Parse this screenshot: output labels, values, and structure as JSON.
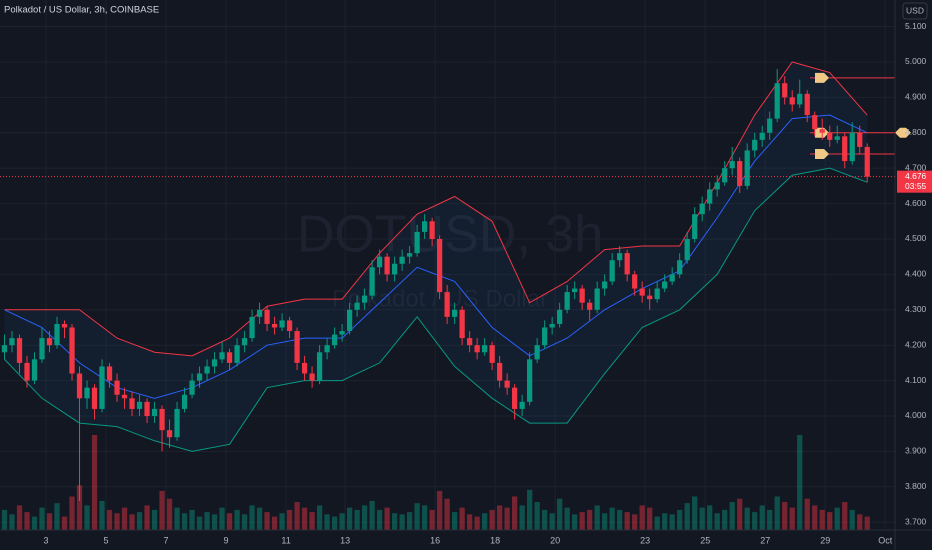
{
  "chart_data": {
    "type": "candlestick",
    "title": "Polkadot / US Dollar, 3h, COINBASE",
    "watermark": "DOTUSD, 3h",
    "watermark_subtitle": "Polkadot / US Dollar",
    "currency": "USD",
    "countdown": "03:55",
    "up_color": "#089981",
    "down_color": "#f23645",
    "ylim": [
      3.678,
      5.175
    ],
    "yticks": [
      {
        "value": 3.7,
        "label": "3.700"
      },
      {
        "value": 3.8,
        "label": "3.800"
      },
      {
        "value": 3.9,
        "label": "3.900"
      },
      {
        "value": 4.0,
        "label": "4.000"
      },
      {
        "value": 4.1,
        "label": "4.100"
      },
      {
        "value": 4.2,
        "label": "4.200"
      },
      {
        "value": 4.3,
        "label": "4.300"
      },
      {
        "value": 4.4,
        "label": "4.400"
      },
      {
        "value": 4.5,
        "label": "4.500"
      },
      {
        "value": 4.6,
        "label": "4.600"
      },
      {
        "value": 4.7,
        "label": "4.700"
      },
      {
        "value": 4.8,
        "label": "4.800"
      },
      {
        "value": 4.9,
        "label": "4.900"
      },
      {
        "value": 5.0,
        "label": "5.000"
      },
      {
        "value": 5.1,
        "label": "5.100"
      }
    ],
    "xlim": [
      -0.6,
      118.7
    ],
    "xticks": [
      {
        "value": 5.53,
        "label": "3"
      },
      {
        "value": 13.53,
        "label": "5"
      },
      {
        "value": 21.53,
        "label": "7"
      },
      {
        "value": 29.53,
        "label": "9"
      },
      {
        "value": 37.53,
        "label": "11"
      },
      {
        "value": 45.4,
        "label": "13"
      },
      {
        "value": 57.4,
        "label": "16"
      },
      {
        "value": 65.4,
        "label": "18"
      },
      {
        "value": 73.4,
        "label": "20"
      },
      {
        "value": 85.4,
        "label": "23"
      },
      {
        "value": 93.4,
        "label": "25"
      },
      {
        "value": 101.4,
        "label": "27"
      },
      {
        "value": 109.4,
        "label": "29"
      },
      {
        "value": 117.4,
        "label": "Oct"
      }
    ],
    "grid": true,
    "candles": [
      [
        4.18,
        4.23,
        4.16,
        4.2
      ],
      [
        4.2,
        4.24,
        4.18,
        4.22
      ],
      [
        4.22,
        4.23,
        4.12,
        4.15
      ],
      [
        4.15,
        4.17,
        4.08,
        4.1
      ],
      [
        4.1,
        4.18,
        4.09,
        4.16
      ],
      [
        4.16,
        4.25,
        4.15,
        4.22
      ],
      [
        4.22,
        4.24,
        4.18,
        4.2
      ],
      [
        4.2,
        4.28,
        4.19,
        4.26
      ],
      [
        4.26,
        4.27,
        4.22,
        4.25
      ],
      [
        4.25,
        4.26,
        4.1,
        4.12
      ],
      [
        4.12,
        4.14,
        3.76,
        4.05
      ],
      [
        4.05,
        4.1,
        4.02,
        4.08
      ],
      [
        4.08,
        4.09,
        3.99,
        4.02
      ],
      [
        4.02,
        4.16,
        4.01,
        4.14
      ],
      [
        4.14,
        4.15,
        4.08,
        4.1
      ],
      [
        4.1,
        4.12,
        4.04,
        4.06
      ],
      [
        4.06,
        4.08,
        4.02,
        4.05
      ],
      [
        4.05,
        4.07,
        4.0,
        4.02
      ],
      [
        4.02,
        4.06,
        4.0,
        4.04
      ],
      [
        4.04,
        4.05,
        3.98,
        4.0
      ],
      [
        4.0,
        4.04,
        3.98,
        4.02
      ],
      [
        4.02,
        4.03,
        3.9,
        3.96
      ],
      [
        3.96,
        3.99,
        3.91,
        3.94
      ],
      [
        3.94,
        4.04,
        3.93,
        4.02
      ],
      [
        4.02,
        4.08,
        4.01,
        4.06
      ],
      [
        4.06,
        4.12,
        4.05,
        4.1
      ],
      [
        4.1,
        4.14,
        4.08,
        4.12
      ],
      [
        4.12,
        4.16,
        4.1,
        4.14
      ],
      [
        4.14,
        4.18,
        4.12,
        4.16
      ],
      [
        4.16,
        4.21,
        4.15,
        4.18
      ],
      [
        4.18,
        4.19,
        4.13,
        4.15
      ],
      [
        4.15,
        4.22,
        4.14,
        4.2
      ],
      [
        4.2,
        4.24,
        4.18,
        4.22
      ],
      [
        4.22,
        4.3,
        4.21,
        4.28
      ],
      [
        4.28,
        4.32,
        4.26,
        4.3
      ],
      [
        4.3,
        4.31,
        4.24,
        4.26
      ],
      [
        4.26,
        4.28,
        4.23,
        4.25
      ],
      [
        4.25,
        4.29,
        4.24,
        4.27
      ],
      [
        4.27,
        4.28,
        4.22,
        4.24
      ],
      [
        4.24,
        4.25,
        4.13,
        4.15
      ],
      [
        4.15,
        4.17,
        4.1,
        4.12
      ],
      [
        4.12,
        4.14,
        4.08,
        4.1
      ],
      [
        4.1,
        4.2,
        4.09,
        4.18
      ],
      [
        4.18,
        4.22,
        4.16,
        4.2
      ],
      [
        4.2,
        4.25,
        4.19,
        4.23
      ],
      [
        4.23,
        4.26,
        4.21,
        4.24
      ],
      [
        4.24,
        4.32,
        4.23,
        4.3
      ],
      [
        4.3,
        4.34,
        4.28,
        4.32
      ],
      [
        4.32,
        4.36,
        4.3,
        4.34
      ],
      [
        4.34,
        4.44,
        4.33,
        4.42
      ],
      [
        4.42,
        4.47,
        4.4,
        4.45
      ],
      [
        4.45,
        4.46,
        4.38,
        4.4
      ],
      [
        4.4,
        4.45,
        4.38,
        4.43
      ],
      [
        4.43,
        4.47,
        4.41,
        4.45
      ],
      [
        4.45,
        4.48,
        4.43,
        4.46
      ],
      [
        4.46,
        4.54,
        4.45,
        4.52
      ],
      [
        4.52,
        4.57,
        4.5,
        4.55
      ],
      [
        4.55,
        4.56,
        4.48,
        4.5
      ],
      [
        4.5,
        4.51,
        4.33,
        4.35
      ],
      [
        4.35,
        4.37,
        4.26,
        4.28
      ],
      [
        4.28,
        4.32,
        4.26,
        4.3
      ],
      [
        4.3,
        4.31,
        4.2,
        4.22
      ],
      [
        4.22,
        4.24,
        4.18,
        4.2
      ],
      [
        4.2,
        4.22,
        4.16,
        4.18
      ],
      [
        4.18,
        4.22,
        4.17,
        4.2
      ],
      [
        4.2,
        4.21,
        4.13,
        4.15
      ],
      [
        4.15,
        4.17,
        4.08,
        4.1
      ],
      [
        4.1,
        4.12,
        4.06,
        4.08
      ],
      [
        4.08,
        4.09,
        3.99,
        4.02
      ],
      [
        4.02,
        4.06,
        4.0,
        4.04
      ],
      [
        4.04,
        4.18,
        4.03,
        4.16
      ],
      [
        4.16,
        4.22,
        4.15,
        4.2
      ],
      [
        4.2,
        4.27,
        4.19,
        4.25
      ],
      [
        4.25,
        4.28,
        4.23,
        4.26
      ],
      [
        4.26,
        4.32,
        4.25,
        4.3
      ],
      [
        4.3,
        4.37,
        4.29,
        4.35
      ],
      [
        4.35,
        4.38,
        4.33,
        4.36
      ],
      [
        4.36,
        4.37,
        4.3,
        4.32
      ],
      [
        4.32,
        4.33,
        4.27,
        4.3
      ],
      [
        4.3,
        4.38,
        4.29,
        4.36
      ],
      [
        4.36,
        4.4,
        4.34,
        4.38
      ],
      [
        4.38,
        4.46,
        4.37,
        4.44
      ],
      [
        4.44,
        4.48,
        4.42,
        4.46
      ],
      [
        4.46,
        4.47,
        4.38,
        4.4
      ],
      [
        4.4,
        4.41,
        4.34,
        4.36
      ],
      [
        4.36,
        4.38,
        4.32,
        4.34
      ],
      [
        4.34,
        4.36,
        4.3,
        4.33
      ],
      [
        4.33,
        4.38,
        4.32,
        4.36
      ],
      [
        4.36,
        4.4,
        4.35,
        4.38
      ],
      [
        4.38,
        4.42,
        4.37,
        4.4
      ],
      [
        4.4,
        4.46,
        4.39,
        4.44
      ],
      [
        4.44,
        4.52,
        4.43,
        4.5
      ],
      [
        4.5,
        4.59,
        4.49,
        4.57
      ],
      [
        4.57,
        4.62,
        4.55,
        4.6
      ],
      [
        4.6,
        4.66,
        4.58,
        4.64
      ],
      [
        4.64,
        4.68,
        4.62,
        4.66
      ],
      [
        4.66,
        4.72,
        4.65,
        4.7
      ],
      [
        4.7,
        4.76,
        4.68,
        4.72
      ],
      [
        4.72,
        4.73,
        4.63,
        4.65
      ],
      [
        4.65,
        4.77,
        4.64,
        4.75
      ],
      [
        4.75,
        4.8,
        4.73,
        4.78
      ],
      [
        4.78,
        4.82,
        4.76,
        4.8
      ],
      [
        4.8,
        4.86,
        4.78,
        4.84
      ],
      [
        4.84,
        4.98,
        4.83,
        4.94
      ],
      [
        4.94,
        4.96,
        4.88,
        4.9
      ],
      [
        4.9,
        4.92,
        4.86,
        4.88
      ],
      [
        4.88,
        4.95,
        4.87,
        4.91
      ],
      [
        4.91,
        4.92,
        4.83,
        4.85
      ],
      [
        4.85,
        4.86,
        4.79,
        4.81
      ],
      [
        4.81,
        4.84,
        4.78,
        4.8
      ],
      [
        4.8,
        4.82,
        4.76,
        4.78
      ],
      [
        4.78,
        4.82,
        4.77,
        4.79
      ],
      [
        4.79,
        4.8,
        4.7,
        4.72
      ],
      [
        4.72,
        4.83,
        4.71,
        4.8
      ],
      [
        4.8,
        4.82,
        4.74,
        4.76
      ],
      [
        4.76,
        4.77,
        4.66,
        4.676
      ]
    ],
    "volume": [
      18,
      14,
      22,
      16,
      12,
      20,
      15,
      24,
      12,
      30,
      40,
      22,
      85,
      26,
      18,
      15,
      20,
      14,
      16,
      22,
      18,
      35,
      28,
      20,
      15,
      18,
      12,
      16,
      14,
      20,
      15,
      18,
      14,
      22,
      20,
      16,
      12,
      15,
      18,
      25,
      20,
      16,
      22,
      14,
      12,
      15,
      20,
      18,
      22,
      26,
      18,
      20,
      15,
      14,
      16,
      24,
      22,
      18,
      35,
      28,
      16,
      20,
      14,
      12,
      15,
      18,
      22,
      20,
      30,
      22,
      36,
      25,
      18,
      15,
      28,
      20,
      14,
      16,
      18,
      22,
      15,
      20,
      18,
      16,
      14,
      22,
      20,
      12,
      15,
      14,
      18,
      24,
      30,
      20,
      22,
      15,
      18,
      25,
      28,
      20,
      16,
      22,
      18,
      30,
      25,
      20,
      85,
      28,
      22,
      18,
      16,
      20,
      25,
      18,
      14,
      12
    ],
    "bands": {
      "x": [
        0,
        5,
        10,
        15,
        20,
        25,
        30,
        35,
        40,
        45,
        50,
        55,
        60,
        65,
        70,
        75,
        80,
        85,
        90,
        95,
        100,
        105,
        110,
        115
      ],
      "upper": [
        4.3,
        4.3,
        4.3,
        4.22,
        4.18,
        4.17,
        4.22,
        4.31,
        4.33,
        4.33,
        4.46,
        4.57,
        4.62,
        4.55,
        4.32,
        4.38,
        4.47,
        4.48,
        4.48,
        4.66,
        4.85,
        5.0,
        4.97,
        4.85
      ],
      "middle": [
        4.3,
        4.25,
        4.15,
        4.08,
        4.05,
        4.08,
        4.13,
        4.2,
        4.22,
        4.22,
        4.32,
        4.42,
        4.38,
        4.25,
        4.17,
        4.22,
        4.3,
        4.36,
        4.41,
        4.56,
        4.72,
        4.84,
        4.85,
        4.8
      ],
      "lower": [
        4.16,
        4.05,
        3.98,
        3.97,
        3.93,
        3.9,
        3.92,
        4.08,
        4.1,
        4.1,
        4.15,
        4.28,
        4.14,
        4.05,
        3.98,
        3.98,
        4.12,
        4.25,
        4.3,
        4.4,
        4.58,
        4.68,
        4.7,
        4.66
      ]
    },
    "levels": [
      4.955,
      4.8,
      4.74
    ]
  }
}
